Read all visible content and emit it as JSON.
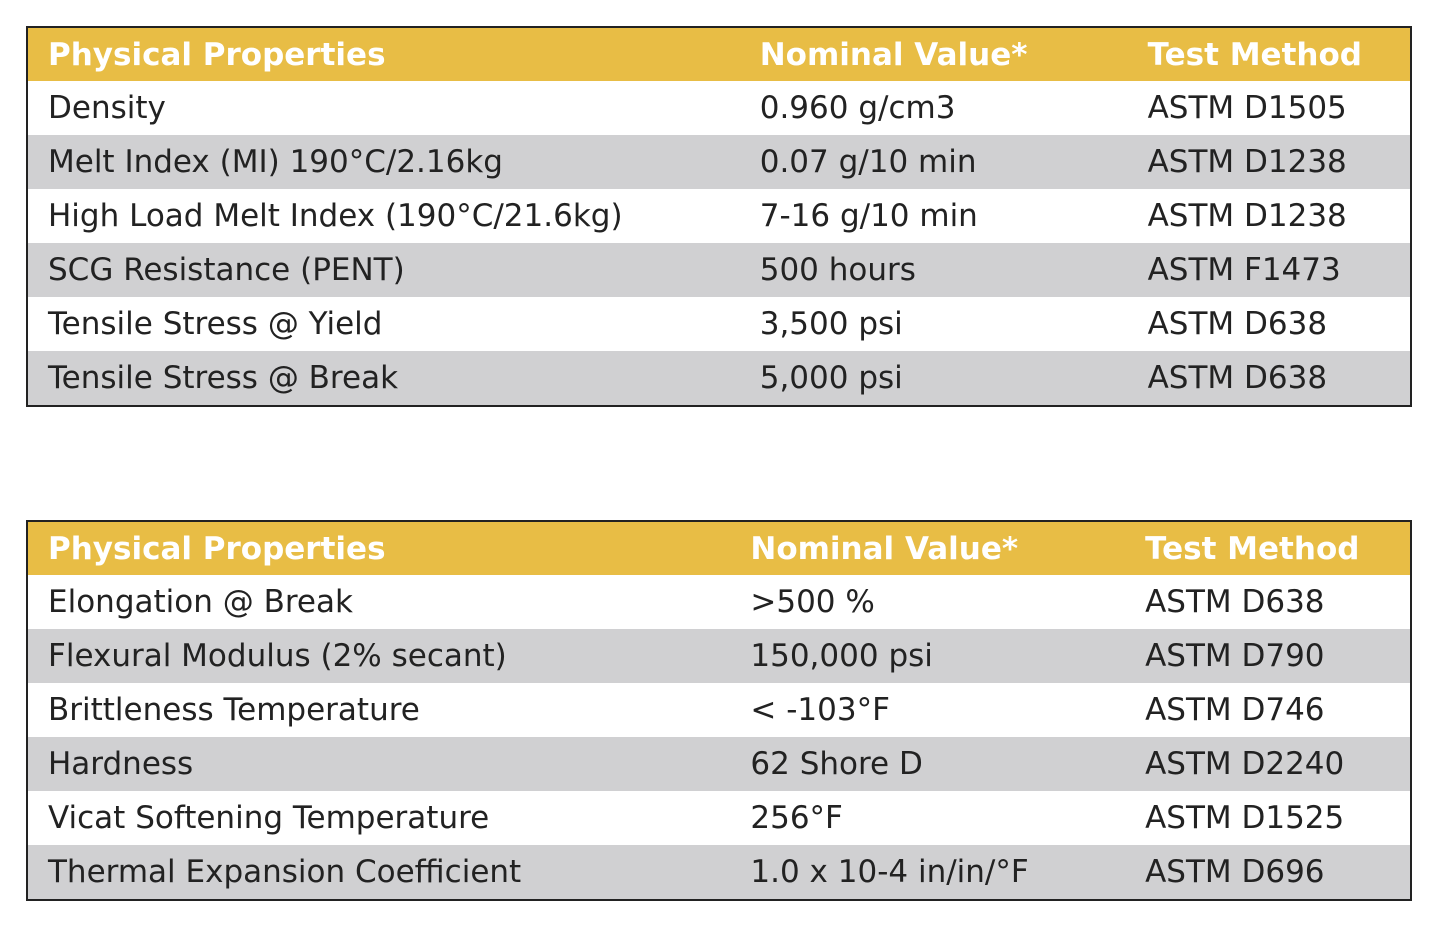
{
  "tables": [
    {
      "header": [
        "Physical Properties",
        "Nominal Value*",
        "Test Method"
      ],
      "rows": [
        [
          "Density",
          "0.960 g/cm3",
          "ASTM D1505"
        ],
        [
          "Melt Index (MI) 190°C/2.16kg",
          "0.07 g/10 min",
          "ASTM D1238"
        ],
        [
          "High Load Melt Index (190°C/21.6kg)",
          "7-16 g/10 min",
          "ASTM D1238"
        ],
        [
          "SCG Resistance (PENT)",
          "500 hours",
          "ASTM F1473"
        ],
        [
          "Tensile Stress @ Yield",
          "3,500 psi",
          "ASTM D638"
        ],
        [
          "Tensile Stress @ Break",
          "5,000 psi",
          "ASTM D638"
        ]
      ]
    },
    {
      "header": [
        "Physical Properties",
        "Nominal Value*",
        "Test Method"
      ],
      "rows": [
        [
          "Elongation @ Break",
          ">500 %",
          "ASTM D638"
        ],
        [
          "Flexural Modulus (2% secant)",
          "150,000 psi",
          "ASTM D790"
        ],
        [
          "Brittleness Temperature",
          "< -103°F",
          "ASTM D746"
        ],
        [
          "Hardness",
          "62 Shore D",
          "ASTM D2240"
        ],
        [
          "Vicat Softening Temperature",
          "256°F",
          "ASTM D1525"
        ],
        [
          "Thermal Expansion Coefficient",
          "1.0 x 10-4 in/in/°F",
          "ASTM D696"
        ]
      ]
    }
  ]
}
